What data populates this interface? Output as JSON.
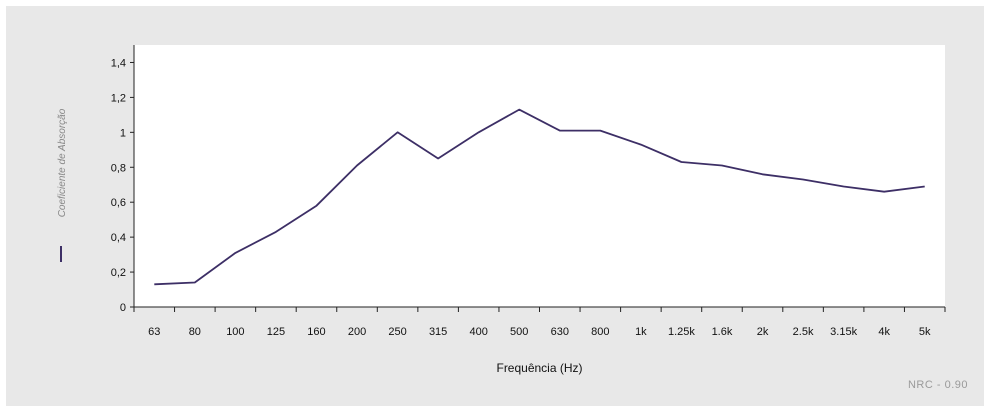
{
  "chart_data": {
    "type": "line",
    "xlabel": "Frequência (Hz)",
    "ylabel": "Coeficiente de Absorção",
    "ylim": [
      0,
      1.4
    ],
    "yticks": [
      "0",
      "0,2",
      "0,4",
      "0,6",
      "0,8",
      "1",
      "1,2",
      "1,4"
    ],
    "categories": [
      "63",
      "80",
      "100",
      "125",
      "160",
      "200",
      "250",
      "315",
      "400",
      "500",
      "630",
      "800",
      "1k",
      "1.25k",
      "1.6k",
      "2k",
      "2.5k",
      "3.15k",
      "4k",
      "5k"
    ],
    "series": [
      {
        "values": [
          0.13,
          0.14,
          0.31,
          0.43,
          0.58,
          0.81,
          1.0,
          0.85,
          1.0,
          1.13,
          1.01,
          1.01,
          0.93,
          0.83,
          0.81,
          0.76,
          0.73,
          0.69,
          0.66,
          0.69
        ],
        "color": "#3d2f66"
      }
    ],
    "grid": false,
    "legend": "left-vertical"
  },
  "annotation": "NRC - 0.90",
  "colors": {
    "background": "#e8e8e8",
    "plot_area": "#ffffff",
    "line": "#3d2f66",
    "axis": "#222222"
  }
}
